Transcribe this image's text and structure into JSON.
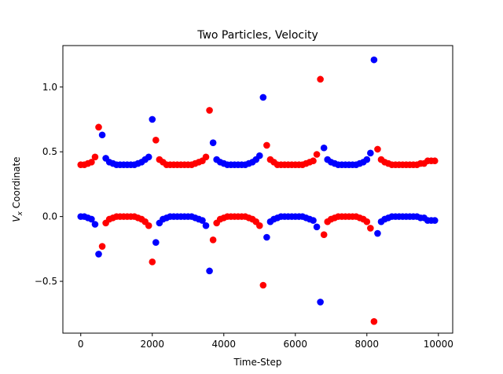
{
  "chart_data": {
    "type": "scatter",
    "title": "Two Particles, Velocity",
    "xlabel": "Time-Step",
    "ylabel_main": "V",
    "ylabel_sub": "x",
    "ylabel_rest": " Coordinate",
    "xlim": [
      -500,
      10400
    ],
    "ylim": [
      -0.9,
      1.32
    ],
    "xticks": [
      0,
      2000,
      4000,
      6000,
      8000,
      10000
    ],
    "xtick_labels": [
      "0",
      "2000",
      "4000",
      "6000",
      "8000",
      "10000"
    ],
    "yticks": [
      -0.5,
      0.0,
      0.5,
      1.0
    ],
    "ytick_labels": [
      "−0.5",
      "0.0",
      "0.5",
      "1.0"
    ],
    "grid": false,
    "legend": "none",
    "series": [
      {
        "color": "#ff0000",
        "x": [
          0,
          100,
          200,
          300,
          400,
          500,
          600,
          700,
          800,
          900,
          1000,
          1100,
          1200,
          1300,
          1400,
          1500,
          1600,
          1700,
          1800,
          1900,
          2000,
          2100,
          2200,
          2300,
          2400,
          2500,
          2600,
          2700,
          2800,
          2900,
          3000,
          3100,
          3200,
          3300,
          3400,
          3500,
          3600,
          3700,
          3800,
          3900,
          4000,
          4100,
          4200,
          4300,
          4400,
          4500,
          4600,
          4700,
          4800,
          4900,
          5000,
          5100,
          5200,
          5300,
          5400,
          5500,
          5600,
          5700,
          5800,
          5900,
          6000,
          6100,
          6200,
          6300,
          6400,
          6500,
          6600,
          6700,
          6800,
          6900,
          7000,
          7100,
          7200,
          7300,
          7400,
          7500,
          7600,
          7700,
          7800,
          7900,
          8000,
          8100,
          8200,
          8300,
          8400,
          8500,
          8600,
          8700,
          8800,
          8900,
          9000,
          9100,
          9200,
          9300,
          9400,
          9500,
          9600,
          9700,
          9800,
          9900
        ],
        "y": [
          0.4,
          0.4,
          0.41,
          0.42,
          0.46,
          0.69,
          -0.23,
          -0.05,
          -0.02,
          -0.01,
          0.0,
          0.0,
          0.0,
          0.0,
          0.0,
          0.0,
          -0.01,
          -0.02,
          -0.04,
          -0.07,
          -0.35,
          0.59,
          0.44,
          0.42,
          0.4,
          0.4,
          0.4,
          0.4,
          0.4,
          0.4,
          0.4,
          0.4,
          0.41,
          0.42,
          0.43,
          0.46,
          0.82,
          -0.18,
          -0.05,
          -0.02,
          -0.01,
          0.0,
          0.0,
          0.0,
          0.0,
          0.0,
          0.0,
          -0.01,
          -0.02,
          -0.04,
          -0.07,
          -0.53,
          0.55,
          0.44,
          0.42,
          0.4,
          0.4,
          0.4,
          0.4,
          0.4,
          0.4,
          0.4,
          0.4,
          0.41,
          0.42,
          0.43,
          0.48,
          1.06,
          -0.14,
          -0.04,
          -0.02,
          -0.01,
          0.0,
          0.0,
          0.0,
          0.0,
          0.0,
          0.0,
          -0.01,
          -0.02,
          -0.04,
          -0.09,
          -0.81,
          0.52,
          0.44,
          0.42,
          0.41,
          0.4,
          0.4,
          0.4,
          0.4,
          0.4,
          0.4,
          0.4,
          0.4,
          0.41,
          0.41,
          0.43,
          0.43,
          0.43
        ]
      },
      {
        "color": "#0000ff",
        "x": [
          0,
          100,
          200,
          300,
          400,
          500,
          600,
          700,
          800,
          900,
          1000,
          1100,
          1200,
          1300,
          1400,
          1500,
          1600,
          1700,
          1800,
          1900,
          2000,
          2100,
          2200,
          2300,
          2400,
          2500,
          2600,
          2700,
          2800,
          2900,
          3000,
          3100,
          3200,
          3300,
          3400,
          3500,
          3600,
          3700,
          3800,
          3900,
          4000,
          4100,
          4200,
          4300,
          4400,
          4500,
          4600,
          4700,
          4800,
          4900,
          5000,
          5100,
          5200,
          5300,
          5400,
          5500,
          5600,
          5700,
          5800,
          5900,
          6000,
          6100,
          6200,
          6300,
          6400,
          6500,
          6600,
          6700,
          6800,
          6900,
          7000,
          7100,
          7200,
          7300,
          7400,
          7500,
          7600,
          7700,
          7800,
          7900,
          8000,
          8100,
          8200,
          8300,
          8400,
          8500,
          8600,
          8700,
          8800,
          8900,
          9000,
          9100,
          9200,
          9300,
          9400,
          9500,
          9600,
          9700,
          9800,
          9900
        ],
        "y": [
          0.0,
          0.0,
          -0.01,
          -0.02,
          -0.06,
          -0.29,
          0.63,
          0.45,
          0.42,
          0.41,
          0.4,
          0.4,
          0.4,
          0.4,
          0.4,
          0.4,
          0.41,
          0.42,
          0.44,
          0.46,
          0.75,
          -0.2,
          -0.05,
          -0.02,
          -0.01,
          0.0,
          0.0,
          0.0,
          0.0,
          0.0,
          0.0,
          0.0,
          -0.01,
          -0.02,
          -0.03,
          -0.07,
          -0.42,
          0.57,
          0.44,
          0.42,
          0.41,
          0.4,
          0.4,
          0.4,
          0.4,
          0.4,
          0.4,
          0.41,
          0.42,
          0.44,
          0.47,
          0.92,
          -0.16,
          -0.04,
          -0.02,
          -0.01,
          0.0,
          0.0,
          0.0,
          0.0,
          0.0,
          0.0,
          0.0,
          -0.01,
          -0.02,
          -0.03,
          -0.08,
          -0.66,
          0.53,
          0.44,
          0.42,
          0.41,
          0.4,
          0.4,
          0.4,
          0.4,
          0.4,
          0.4,
          0.41,
          0.42,
          0.44,
          0.49,
          1.21,
          -0.13,
          -0.04,
          -0.02,
          -0.01,
          0.0,
          0.0,
          0.0,
          0.0,
          0.0,
          0.0,
          0.0,
          0.0,
          -0.01,
          -0.01,
          -0.03,
          -0.03,
          -0.03
        ]
      }
    ]
  }
}
